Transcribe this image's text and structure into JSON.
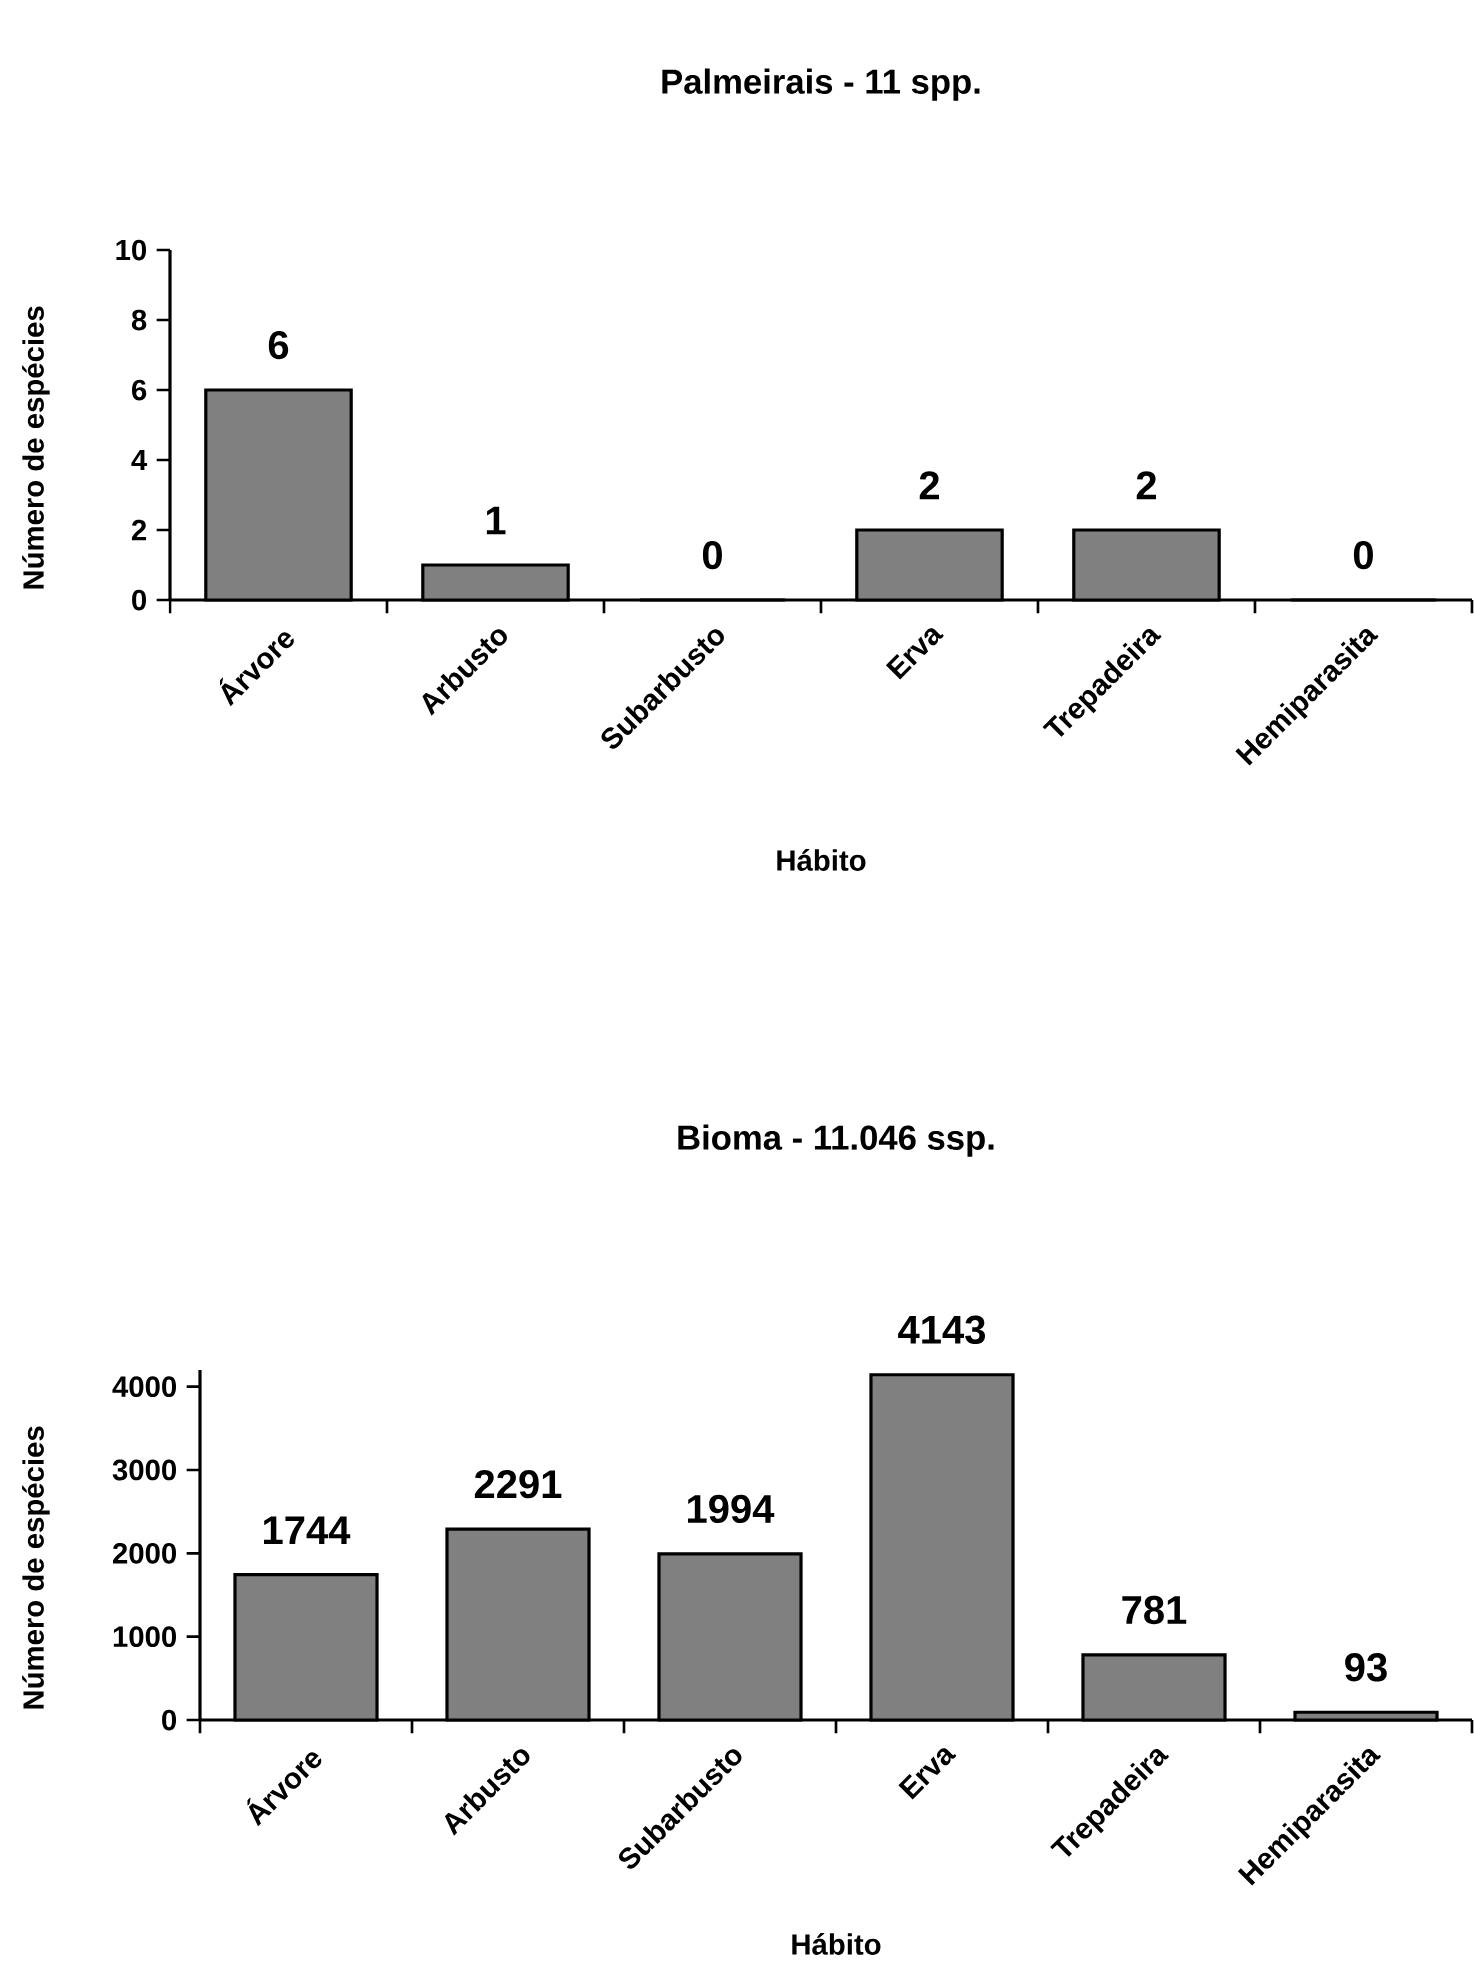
{
  "chart_data": [
    {
      "type": "bar",
      "title": "Palmeirais - 11 spp.",
      "xlabel": "Hábito",
      "ylabel": "Número de espécies",
      "categories": [
        "Árvore",
        "Arbusto",
        "Subarbusto",
        "Erva",
        "Trepadeira",
        "Hemiparasita"
      ],
      "values": [
        6,
        1,
        0,
        2,
        2,
        0
      ],
      "color": "#808080",
      "ylim": [
        0,
        10
      ],
      "yticks": [
        0,
        2,
        4,
        6,
        8,
        10
      ],
      "data_labels": true
    },
    {
      "type": "bar",
      "title": "Bioma - 11.046 ssp.",
      "xlabel": "Hábito",
      "ylabel": "Número de espécies",
      "categories": [
        "Árvore",
        "Arbusto",
        "Subarbusto",
        "Erva",
        "Trepadeira",
        "Hemiparasita"
      ],
      "values": [
        1744,
        2291,
        1994,
        4143,
        781,
        93
      ],
      "color": "#808080",
      "ylim": [
        0,
        4200
      ],
      "yticks": [
        0,
        1000,
        2000,
        3000,
        4000
      ],
      "data_labels": true
    }
  ]
}
